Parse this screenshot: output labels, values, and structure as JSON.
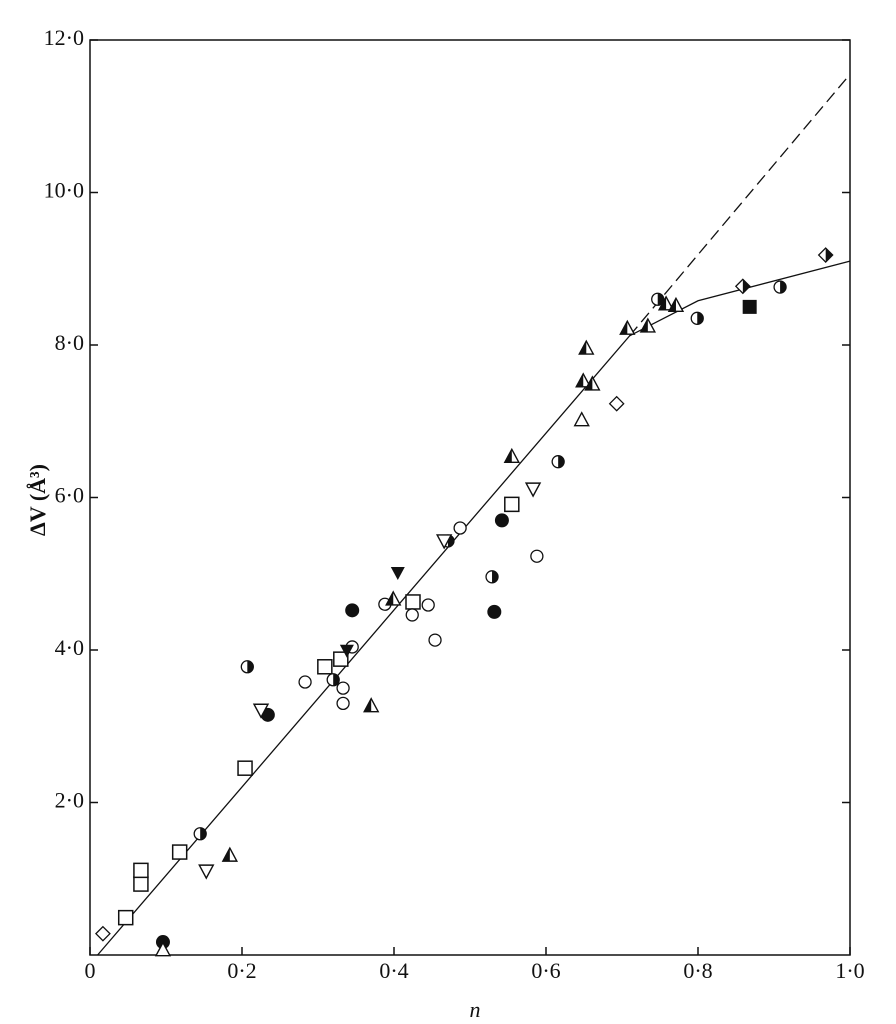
{
  "chart_data": {
    "type": "scatter",
    "xlabel": "n",
    "ylabel": "ΔV (Å³)",
    "xlim": [
      0,
      1.0
    ],
    "ylim": [
      0,
      12.0
    ],
    "xticks": [
      {
        "value": 0,
        "label": "0"
      },
      {
        "value": 0.2,
        "label": "0·2"
      },
      {
        "value": 0.4,
        "label": "0·4"
      },
      {
        "value": 0.6,
        "label": "0·6"
      },
      {
        "value": 0.8,
        "label": "0·8"
      },
      {
        "value": 1.0,
        "label": "1·0"
      }
    ],
    "yticks": [
      {
        "value": 2.0,
        "label": "2·0"
      },
      {
        "value": 4.0,
        "label": "4·0"
      },
      {
        "value": 6.0,
        "label": "6·0"
      },
      {
        "value": 8.0,
        "label": "8·0"
      },
      {
        "value": 10.0,
        "label": "10·0"
      },
      {
        "value": 12.0,
        "label": "12·0"
      }
    ],
    "color": "#111111",
    "series": [
      {
        "marker": "open-square",
        "x": [
          0.047,
          0.067,
          0.067,
          0.118,
          0.204,
          0.309,
          0.33,
          0.425,
          0.555
        ],
        "values": [
          0.49,
          0.93,
          1.11,
          1.35,
          2.45,
          3.78,
          3.88,
          4.63,
          5.91
        ]
      },
      {
        "marker": "open-circle",
        "x": [
          0.283,
          0.333,
          0.333,
          0.345,
          0.388,
          0.424,
          0.445,
          0.454,
          0.487,
          0.588
        ],
        "values": [
          3.58,
          3.5,
          3.3,
          4.04,
          4.6,
          4.46,
          4.59,
          4.13,
          5.6,
          5.23
        ]
      },
      {
        "marker": "filled-circle",
        "x": [
          0.096,
          0.234,
          0.345,
          0.532,
          0.542
        ],
        "values": [
          0.17,
          3.15,
          4.52,
          4.5,
          5.7
        ]
      },
      {
        "marker": "half-circle",
        "x": [
          0.145,
          0.207,
          0.32,
          0.471,
          0.529,
          0.616,
          0.747,
          0.799,
          0.908
        ],
        "values": [
          1.59,
          3.78,
          3.61,
          5.43,
          4.96,
          6.47,
          8.6,
          8.35,
          8.76
        ]
      },
      {
        "marker": "filled-triangle-down",
        "x": [
          0.338,
          0.405
        ],
        "values": [
          3.99,
          5.01
        ]
      },
      {
        "marker": "open-triangle-down",
        "x": [
          0.153,
          0.225,
          0.583,
          0.466
        ],
        "values": [
          1.1,
          3.21,
          6.11,
          5.43
        ]
      },
      {
        "marker": "open-triangle",
        "x": [
          0.096,
          0.647
        ],
        "values": [
          0.07,
          7.02
        ]
      },
      {
        "marker": "half-triangle",
        "x": [
          0.184,
          0.37,
          0.399,
          0.555,
          0.653,
          0.649,
          0.661,
          0.707,
          0.734,
          0.758,
          0.771
        ],
        "values": [
          1.31,
          3.27,
          4.67,
          6.54,
          7.96,
          7.53,
          7.49,
          8.22,
          8.25,
          8.54,
          8.52
        ]
      },
      {
        "marker": "open-diamond",
        "x": [
          0.017,
          0.693
        ],
        "values": [
          0.28,
          7.23
        ]
      },
      {
        "marker": "half-diamond",
        "x": [
          0.859,
          0.968
        ],
        "values": [
          8.77,
          9.18
        ]
      },
      {
        "marker": "filled-square",
        "x": [
          0.868
        ],
        "values": [
          8.5
        ]
      }
    ],
    "lines": [
      {
        "style": "solid",
        "x": [
          0.01,
          0.71,
          0.8,
          1.0
        ],
        "values": [
          0,
          8.12,
          8.58,
          9.1
        ]
      },
      {
        "style": "dashed",
        "x": [
          0.71,
          1.0
        ],
        "values": [
          8.12,
          11.55
        ]
      }
    ]
  }
}
